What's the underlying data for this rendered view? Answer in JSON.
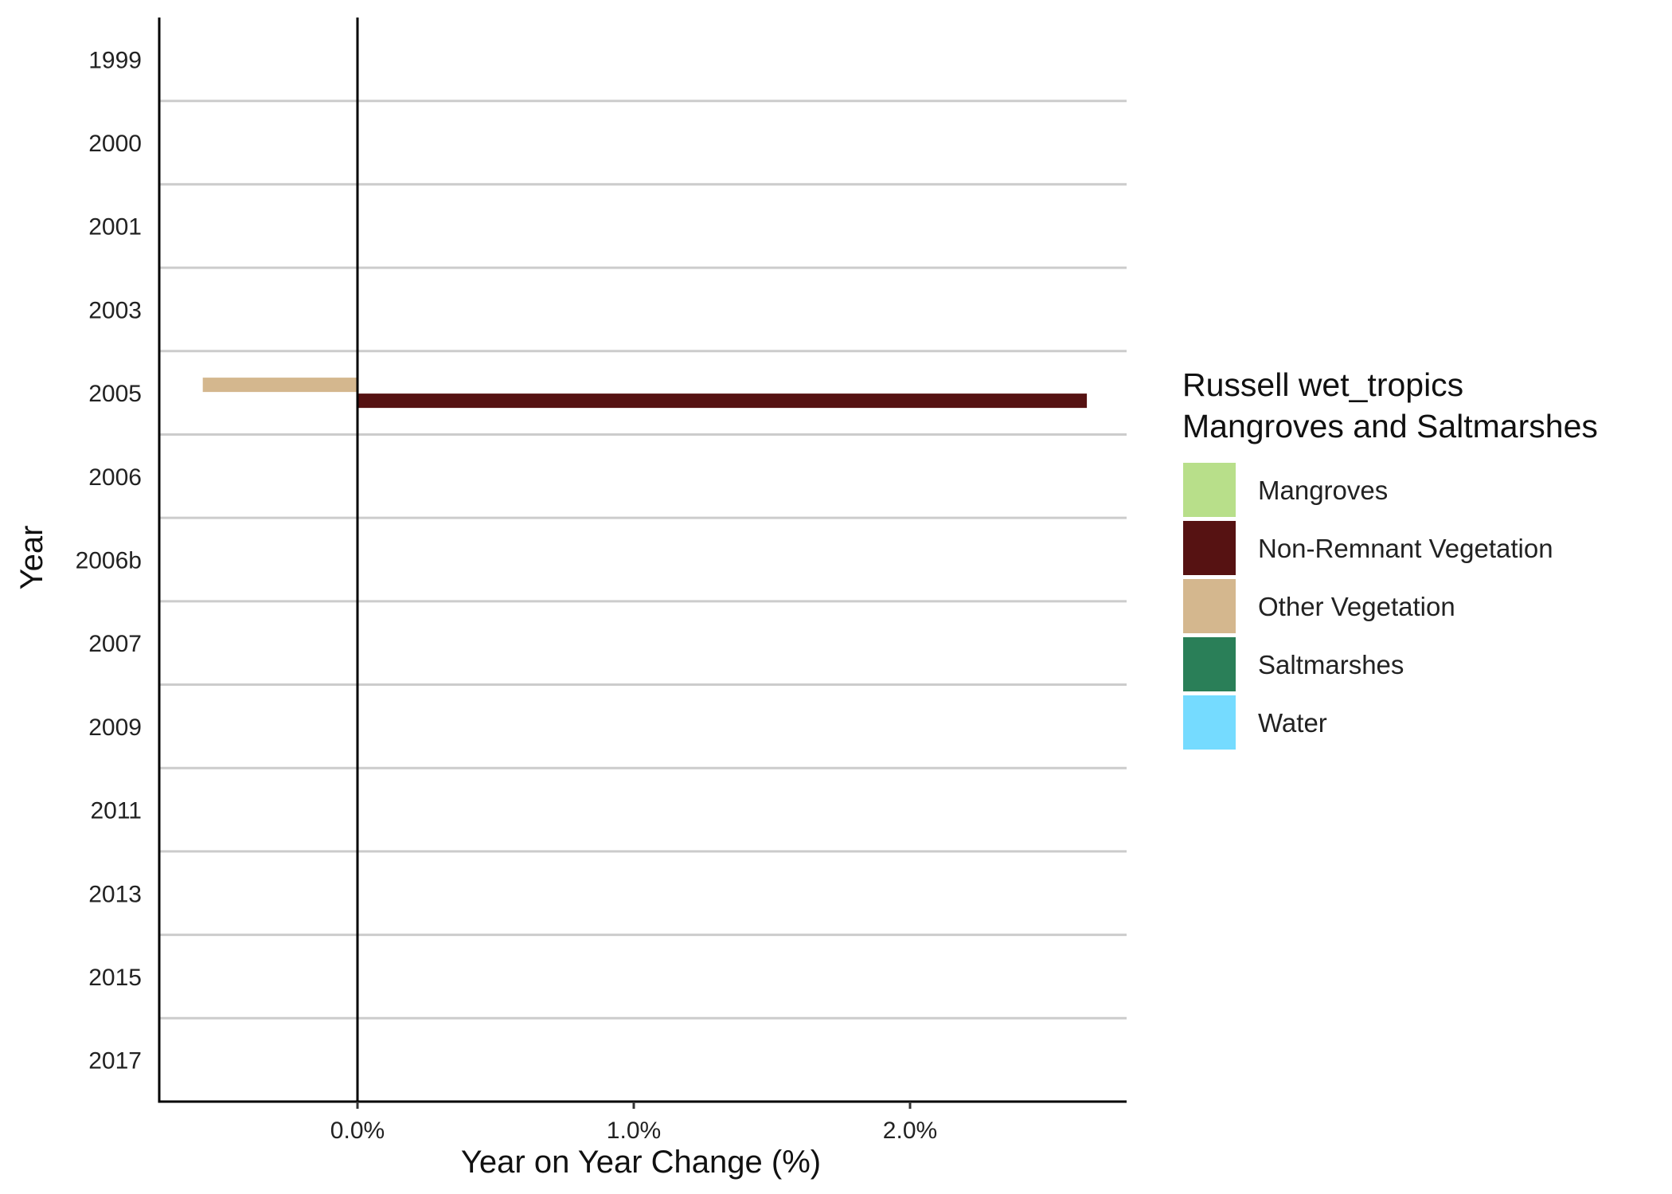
{
  "chart_data": {
    "type": "bar",
    "orientation": "horizontal",
    "xlabel": "Year on Year Change (%)",
    "ylabel": "Year",
    "categories": [
      "1999",
      "2000",
      "2001",
      "2003",
      "2005",
      "2006",
      "2006b",
      "2007",
      "2009",
      "2011",
      "2013",
      "2015",
      "2017"
    ],
    "xlim": [
      -0.72,
      2.8
    ],
    "xticks": [
      {
        "value": 0,
        "label": "0.0%"
      },
      {
        "value": 1,
        "label": "1.0%"
      },
      {
        "value": 2,
        "label": "2.0%"
      }
    ],
    "series": [
      {
        "name": "Mangroves",
        "color": "#B8DF8A",
        "values": [
          null,
          null,
          null,
          null,
          null,
          null,
          null,
          null,
          null,
          null,
          null,
          null,
          null
        ]
      },
      {
        "name": "Non-Remnant Vegetation",
        "color": "#561212",
        "values": [
          null,
          null,
          null,
          null,
          2.64,
          null,
          null,
          null,
          null,
          null,
          null,
          null,
          null
        ]
      },
      {
        "name": "Other Vegetation",
        "color": "#D4B78E",
        "values": [
          null,
          null,
          null,
          null,
          -0.56,
          null,
          null,
          null,
          null,
          null,
          null,
          null,
          null
        ]
      },
      {
        "name": "Saltmarshes",
        "color": "#2A7F58",
        "values": [
          null,
          null,
          null,
          null,
          null,
          null,
          null,
          null,
          null,
          null,
          null,
          null,
          null
        ]
      },
      {
        "name": "Water",
        "color": "#75DBFF",
        "values": [
          null,
          null,
          null,
          null,
          null,
          null,
          null,
          null,
          null,
          null,
          null,
          null,
          null
        ]
      }
    ],
    "legend": {
      "title_lines": [
        "Russell wet_tropics",
        "Mangroves and Saltmarshes"
      ],
      "position": "right"
    },
    "grid": "horizontal separators between categories"
  }
}
